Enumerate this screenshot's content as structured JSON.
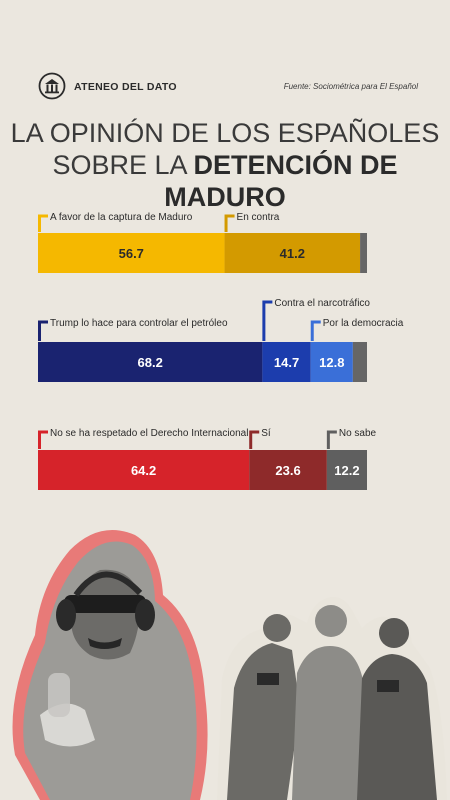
{
  "header": {
    "brand": "ATENEO DEL DATO",
    "source": "Fuente: Sociométrica para El Español",
    "logo_icon": "building-icon"
  },
  "title": {
    "line1": "LA OPINIÓN DE LOS ESPAÑOLES",
    "line2_prefix": "SOBRE LA ",
    "line2_bold": "DETENCIÓN DE MADURO"
  },
  "colors": {
    "background": "#ebe7df",
    "residual": "#666666"
  },
  "chart_data": [
    {
      "type": "bar",
      "stacked": true,
      "orientation": "horizontal",
      "series": [
        {
          "name": "A favor de la captura de Maduro",
          "value": 56.7,
          "color": "#f5b800"
        },
        {
          "name": "En contra",
          "value": 41.2,
          "color": "#d39a00"
        },
        {
          "name": "",
          "value": 2.1,
          "color": "#666666"
        }
      ]
    },
    {
      "type": "bar",
      "stacked": true,
      "orientation": "horizontal",
      "series": [
        {
          "name": "Trump lo hace para controlar el petróleo",
          "value": 68.2,
          "color": "#1a2370"
        },
        {
          "name": "Contra el narcotráfico",
          "value": 14.7,
          "color": "#1c3dad"
        },
        {
          "name": "Por la democracia",
          "value": 12.8,
          "color": "#3a6fd8"
        },
        {
          "name": "",
          "value": 4.3,
          "color": "#666666"
        }
      ]
    },
    {
      "type": "bar",
      "stacked": true,
      "orientation": "horizontal",
      "series": [
        {
          "name": "No se ha respetado el Derecho Internacional",
          "value": 64.2,
          "color": "#d6232a"
        },
        {
          "name": "Sí",
          "value": 23.6,
          "color": "#8e2a2a"
        },
        {
          "name": "No sabe",
          "value": 12.2,
          "color": "#5f5f5f"
        }
      ]
    }
  ]
}
